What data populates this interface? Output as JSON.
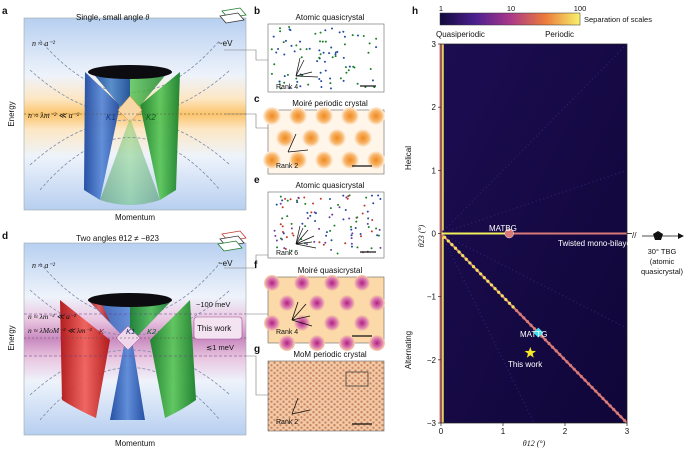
{
  "panels": {
    "a": "a",
    "b": "b",
    "c": "c",
    "d": "d",
    "e": "e",
    "f": "f",
    "g": "g",
    "h": "h"
  },
  "panel_a": {
    "title_main": "Single, small angle ",
    "title_theta": "θ",
    "n_top": "n ≈ a⁻²",
    "ev": "~eV",
    "n_mid": "n ≈ λm⁻² ≪ a⁻²",
    "k1": "K1",
    "k2": "K2",
    "ylabel": "Energy",
    "xlabel": "Momentum"
  },
  "panel_b": {
    "title": "Atomic quasicrystal",
    "rank": "Rank 4"
  },
  "panel_c": {
    "title": "Moiré periodic crystal",
    "rank": "Rank 2"
  },
  "panel_d": {
    "title_main": "Two angles θ12 ≠ −θ23",
    "n_top": "n ≈ a⁻²",
    "ev": "~eV",
    "mev100": "~100 meV",
    "n_mid1": "n ≈ λm⁻² ≪ a⁻²",
    "n_mid2": "n ≈ λMoM⁻² ≪ λm⁻²",
    "k_left": "K",
    "k1": "K1",
    "k2": "K2",
    "this_work": "This work",
    "mev1": "≲1 meV",
    "ylabel": "Energy",
    "xlabel": "Momentum"
  },
  "panel_e": {
    "title": "Atomic quasicrystal",
    "rank": "Rank 6"
  },
  "panel_f": {
    "title": "Moiré quasicrystal",
    "rank": "Rank 4"
  },
  "panel_g": {
    "title": "MoM periodic crystal",
    "rank": "Rank 2"
  },
  "panel_h": {
    "colorbar_ticks": [
      "1",
      "10",
      "100"
    ],
    "colorbar_title": "Separation of scales",
    "quasiperiodic": "Quasiperiodic",
    "periodic": "Periodic",
    "ylabel": "θ23 (°)",
    "xlabel": "θ12 (°)",
    "helical": "Helical",
    "alternating": "Alternating",
    "matbg": "MATBG",
    "mattg": "MATTG",
    "twisted": "Twisted mono-bilayer",
    "this_work": "This work",
    "tbg30_line1": "30° TBG",
    "tbg30_line2": "(atomic",
    "tbg30_line3": "quasicrystal)",
    "axis_break": "//",
    "colors": {
      "background": "#150a45",
      "line": "#d97a78",
      "yellow": "#f2f05a",
      "star": "#f5e628",
      "mattg": "#3ee0f0"
    }
  },
  "chart_data": {
    "type": "scatter",
    "title": "",
    "xlabel": "θ12 (°)",
    "ylabel": "θ23 (°)",
    "xlim": [
      0,
      3
    ],
    "ylim": [
      -3,
      3
    ],
    "xticks": [
      "0",
      "1",
      "2",
      "3"
    ],
    "yticks": [
      "3",
      "2",
      "1",
      "0",
      "−1",
      "−2",
      "−3"
    ],
    "points": [
      {
        "name": "MATBG",
        "x": 1.1,
        "y": 0.0
      },
      {
        "name": "MATTG",
        "x": 1.57,
        "y": -1.57
      },
      {
        "name": "This work",
        "x": 1.44,
        "y": -1.89
      }
    ],
    "lines": [
      {
        "name": "Twisted mono-bilayer",
        "from": [
          0,
          0
        ],
        "to": [
          3,
          0
        ]
      },
      {
        "name": "Alternating diagonal",
        "from": [
          0,
          0
        ],
        "to": [
          3,
          -3
        ]
      }
    ],
    "colorbar": {
      "label": "Separation of scales",
      "ticks": [
        1,
        10,
        100
      ]
    }
  }
}
